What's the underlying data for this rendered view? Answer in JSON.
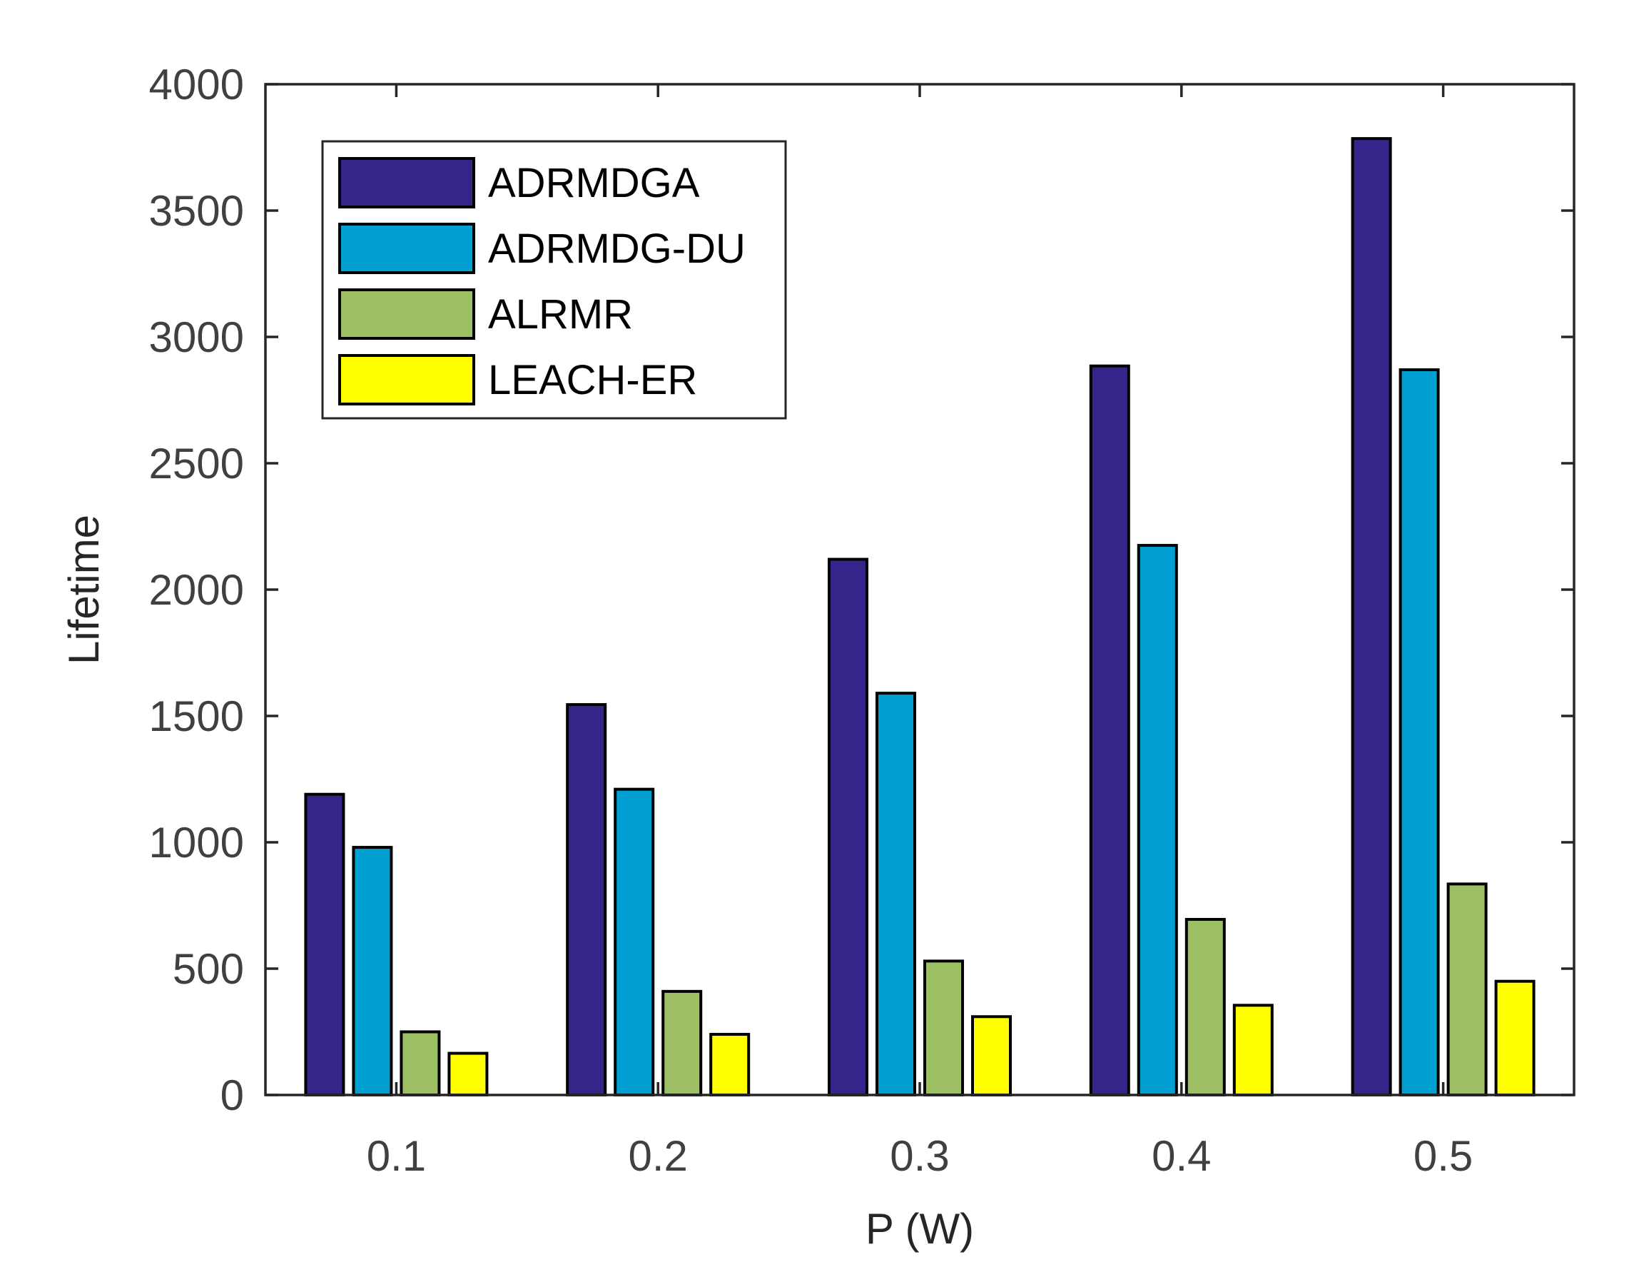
{
  "chart_data": {
    "type": "bar",
    "title": "",
    "xlabel": "P (W)",
    "ylabel": "Lifetime",
    "categories": [
      "0.1",
      "0.2",
      "0.3",
      "0.4",
      "0.5"
    ],
    "ylim": [
      0,
      4000
    ],
    "yticks": [
      "0",
      "500",
      "1000",
      "1500",
      "2000",
      "2500",
      "3000",
      "3500",
      "4000"
    ],
    "grid": false,
    "legend_position": "top-left",
    "series": [
      {
        "name": "ADRMDGA",
        "color": "#35258a",
        "values": [
          1190,
          1545,
          2120,
          2885,
          3785
        ]
      },
      {
        "name": "ADRMDG-DU",
        "color": "#00a0d2",
        "values": [
          980,
          1210,
          1590,
          2175,
          2870
        ]
      },
      {
        "name": "ALRMR",
        "color": "#9dbf63",
        "values": [
          250,
          410,
          530,
          695,
          835
        ]
      },
      {
        "name": "LEACH-ER",
        "color": "#ffff00",
        "values": [
          165,
          240,
          310,
          355,
          450
        ]
      }
    ]
  }
}
